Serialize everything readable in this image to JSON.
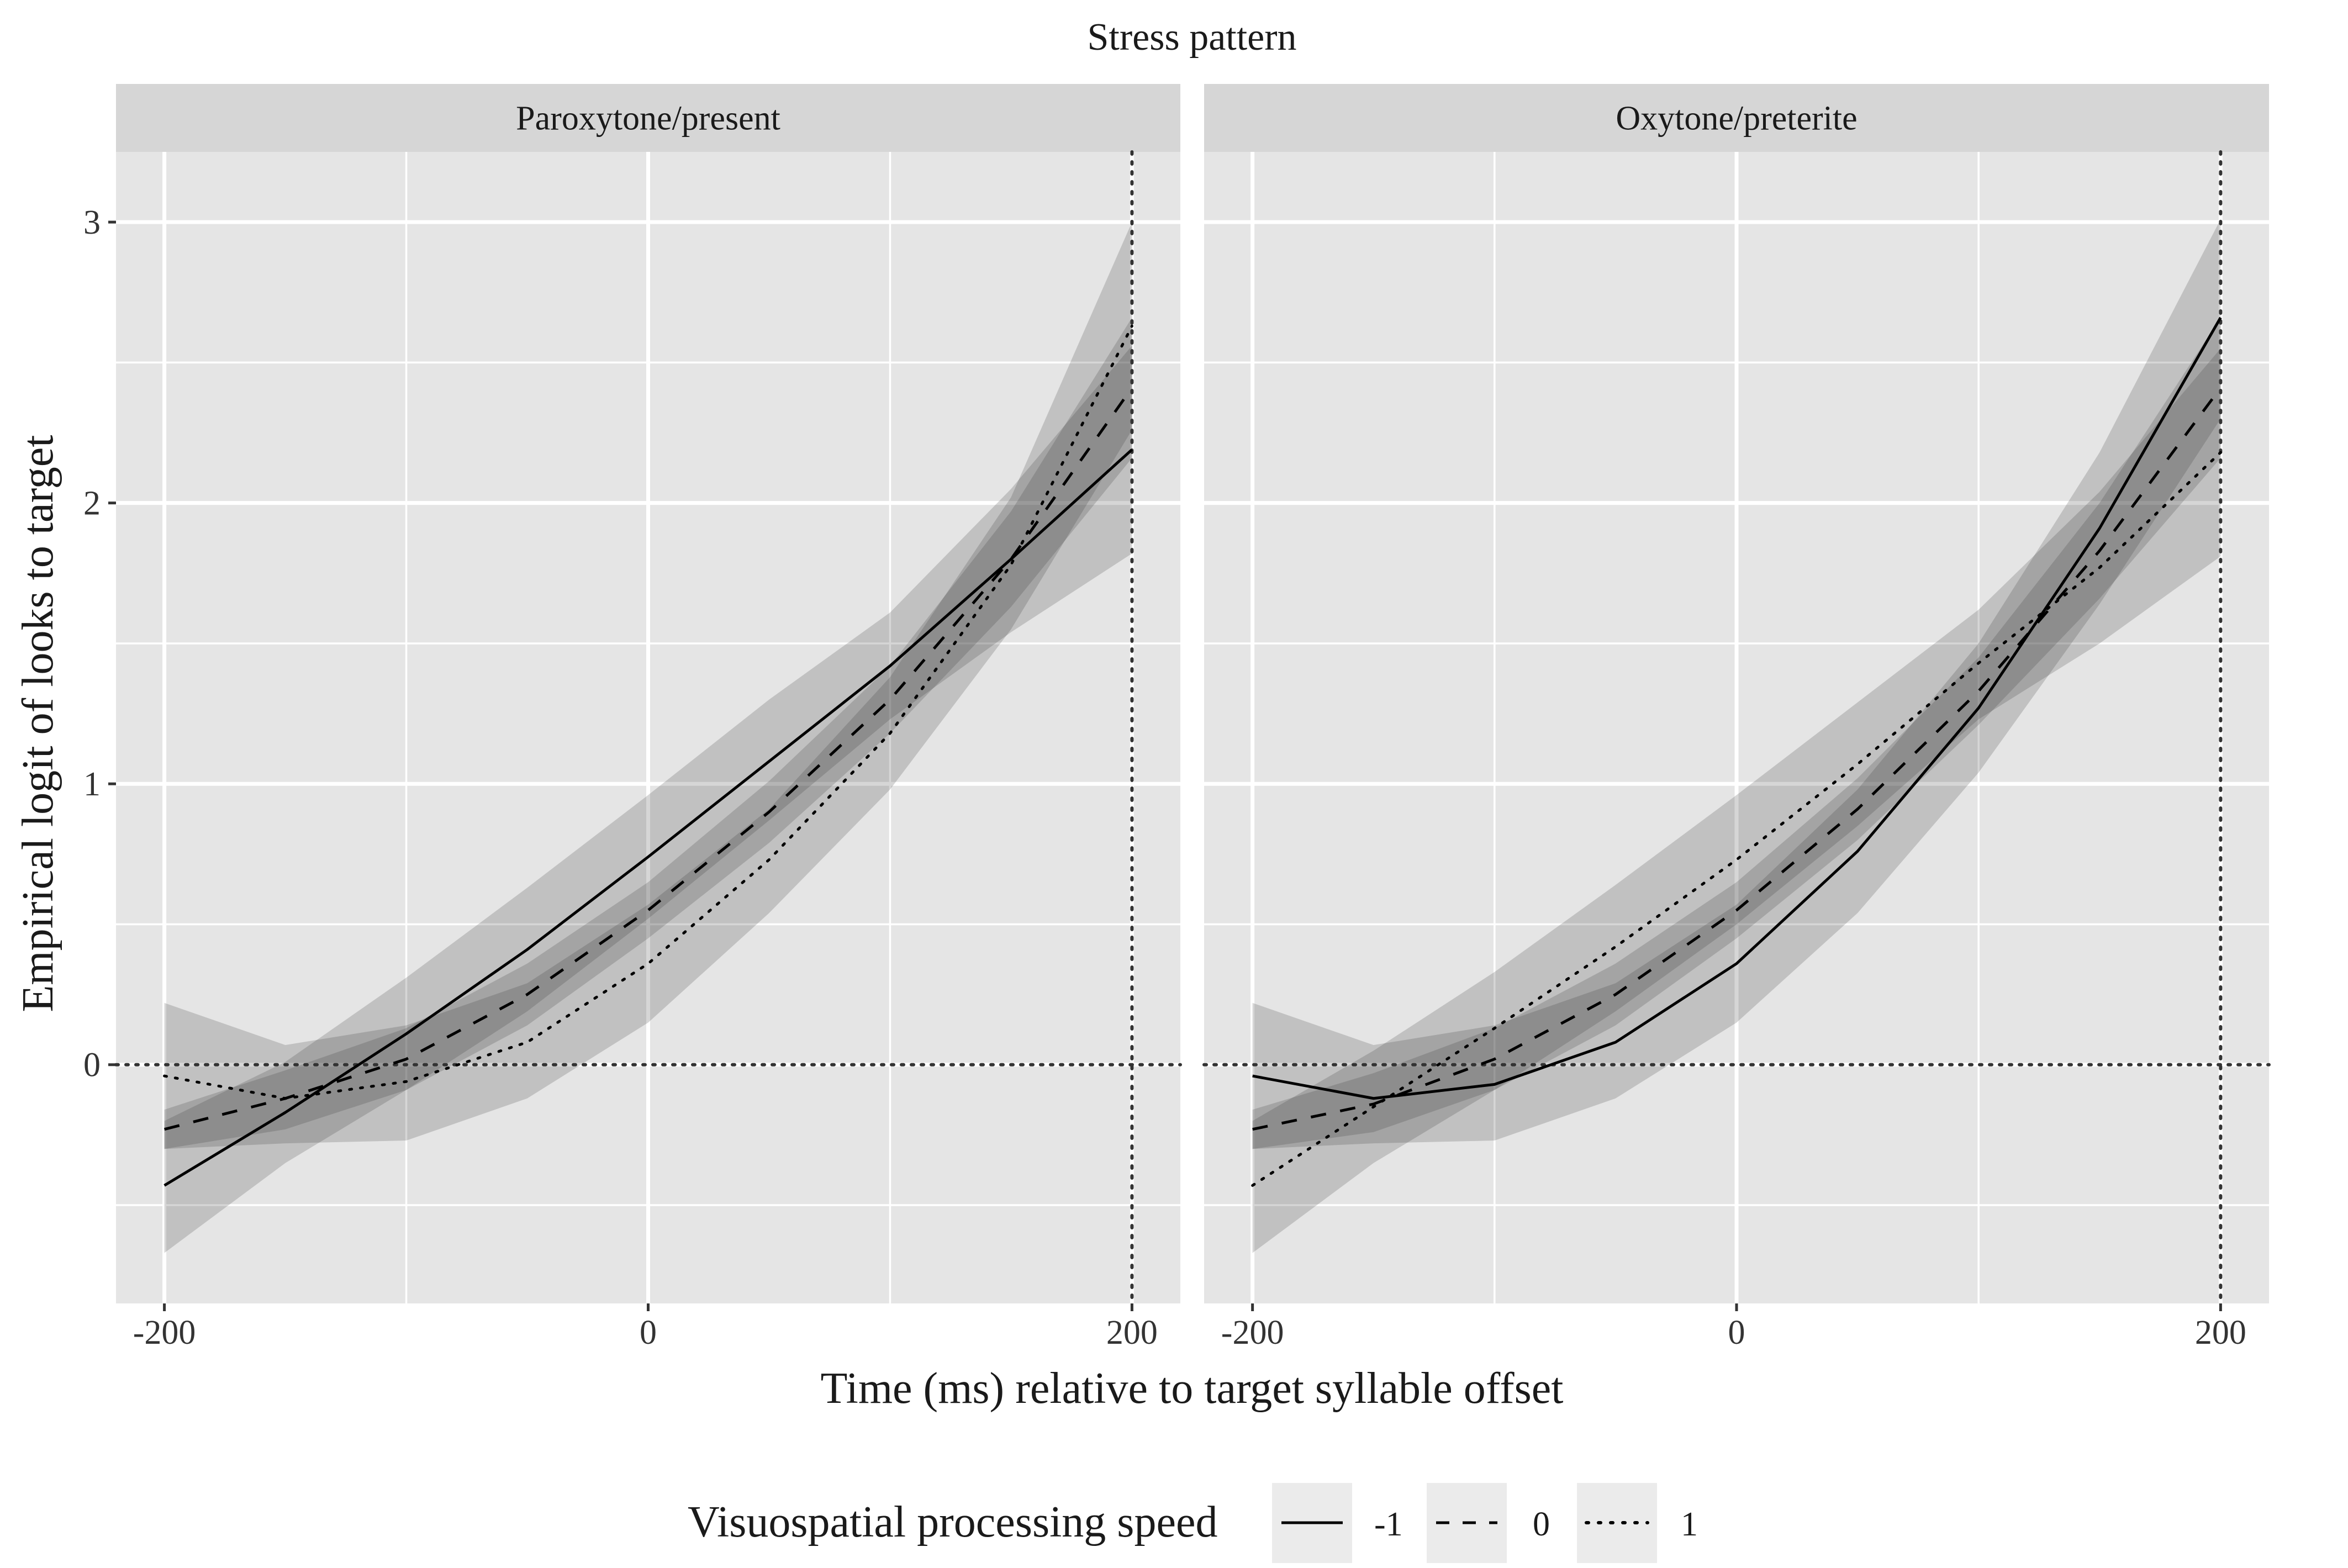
{
  "chart_data": {
    "type": "line",
    "title": "Stress pattern",
    "xlabel": "Time (ms) relative to target syllable offset",
    "ylabel": "Empirical logit of looks to target",
    "xlim": [
      -220,
      220
    ],
    "ylim": [
      -0.85,
      3.25
    ],
    "x_ticks": [
      -200,
      0,
      200
    ],
    "x_tick_labels": [
      "-200",
      "0",
      "200"
    ],
    "y_ticks": [
      0,
      1,
      2,
      3
    ],
    "y_tick_labels": [
      "0",
      "1",
      "2",
      "3"
    ],
    "grid": true,
    "reference_lines": {
      "hline_y": 0,
      "vline_x": 200,
      "style": "dotted"
    },
    "legend": {
      "title": "Visuospatial processing speed",
      "placement": "bottom",
      "entries": [
        {
          "label": "-1",
          "linetype": "solid"
        },
        {
          "label": "0",
          "linetype": "dashed"
        },
        {
          "label": "1",
          "linetype": "dotted"
        }
      ]
    },
    "x": [
      -200,
      -150,
      -100,
      -50,
      0,
      50,
      100,
      150,
      200
    ],
    "panels": [
      {
        "label": "Paroxytone/present",
        "series": [
          {
            "name": "-1",
            "linetype": "solid",
            "values": [
              -0.43,
              -0.17,
              0.11,
              0.41,
              0.74,
              1.08,
              1.42,
              1.8,
              2.19
            ],
            "lower": [
              -0.67,
              -0.35,
              -0.09,
              0.19,
              0.52,
              0.87,
              1.23,
              1.54,
              1.82
            ],
            "upper": [
              -0.2,
              0.01,
              0.31,
              0.63,
              0.96,
              1.3,
              1.61,
              2.05,
              2.56
            ]
          },
          {
            "name": "0",
            "linetype": "dashed",
            "values": [
              -0.23,
              -0.12,
              0.02,
              0.25,
              0.55,
              0.9,
              1.3,
              1.8,
              2.41
            ],
            "lower": [
              -0.3,
              -0.23,
              -0.09,
              0.14,
              0.45,
              0.79,
              1.18,
              1.63,
              2.16
            ],
            "upper": [
              -0.16,
              -0.02,
              0.13,
              0.36,
              0.65,
              1.01,
              1.42,
              1.97,
              2.66
            ]
          },
          {
            "name": "1",
            "linetype": "dotted",
            "values": [
              -0.04,
              -0.12,
              -0.06,
              0.08,
              0.36,
              0.73,
              1.18,
              1.78,
              2.63
            ],
            "lower": [
              -0.3,
              -0.28,
              -0.27,
              -0.12,
              0.15,
              0.54,
              0.98,
              1.55,
              2.26
            ],
            "upper": [
              0.22,
              0.07,
              0.14,
              0.29,
              0.57,
              0.91,
              1.38,
              2.02,
              3.0
            ]
          }
        ]
      },
      {
        "label": "Oxytone/preterite",
        "series": [
          {
            "name": "-1",
            "linetype": "solid",
            "values": [
              -0.04,
              -0.12,
              -0.07,
              0.08,
              0.36,
              0.76,
              1.27,
              1.91,
              2.66
            ],
            "lower": [
              -0.3,
              -0.28,
              -0.27,
              -0.12,
              0.15,
              0.54,
              1.04,
              1.64,
              2.3
            ],
            "upper": [
              0.22,
              0.07,
              0.14,
              0.29,
              0.57,
              0.98,
              1.5,
              2.18,
              3.01
            ]
          },
          {
            "name": "0",
            "linetype": "dashed",
            "values": [
              -0.23,
              -0.14,
              0.02,
              0.25,
              0.55,
              0.91,
              1.33,
              1.83,
              2.41
            ],
            "lower": [
              -0.3,
              -0.24,
              -0.09,
              0.14,
              0.45,
              0.8,
              1.21,
              1.66,
              2.16
            ],
            "upper": [
              -0.16,
              -0.03,
              0.13,
              0.36,
              0.65,
              1.02,
              1.45,
              2.0,
              2.66
            ]
          },
          {
            "name": "1",
            "linetype": "dotted",
            "values": [
              -0.43,
              -0.15,
              0.13,
              0.42,
              0.73,
              1.07,
              1.43,
              1.77,
              2.18
            ],
            "lower": [
              -0.67,
              -0.35,
              -0.09,
              0.19,
              0.5,
              0.85,
              1.23,
              1.5,
              1.81
            ],
            "upper": [
              -0.2,
              0.05,
              0.33,
              0.64,
              0.96,
              1.29,
              1.62,
              2.04,
              2.55
            ]
          }
        ]
      }
    ]
  }
}
